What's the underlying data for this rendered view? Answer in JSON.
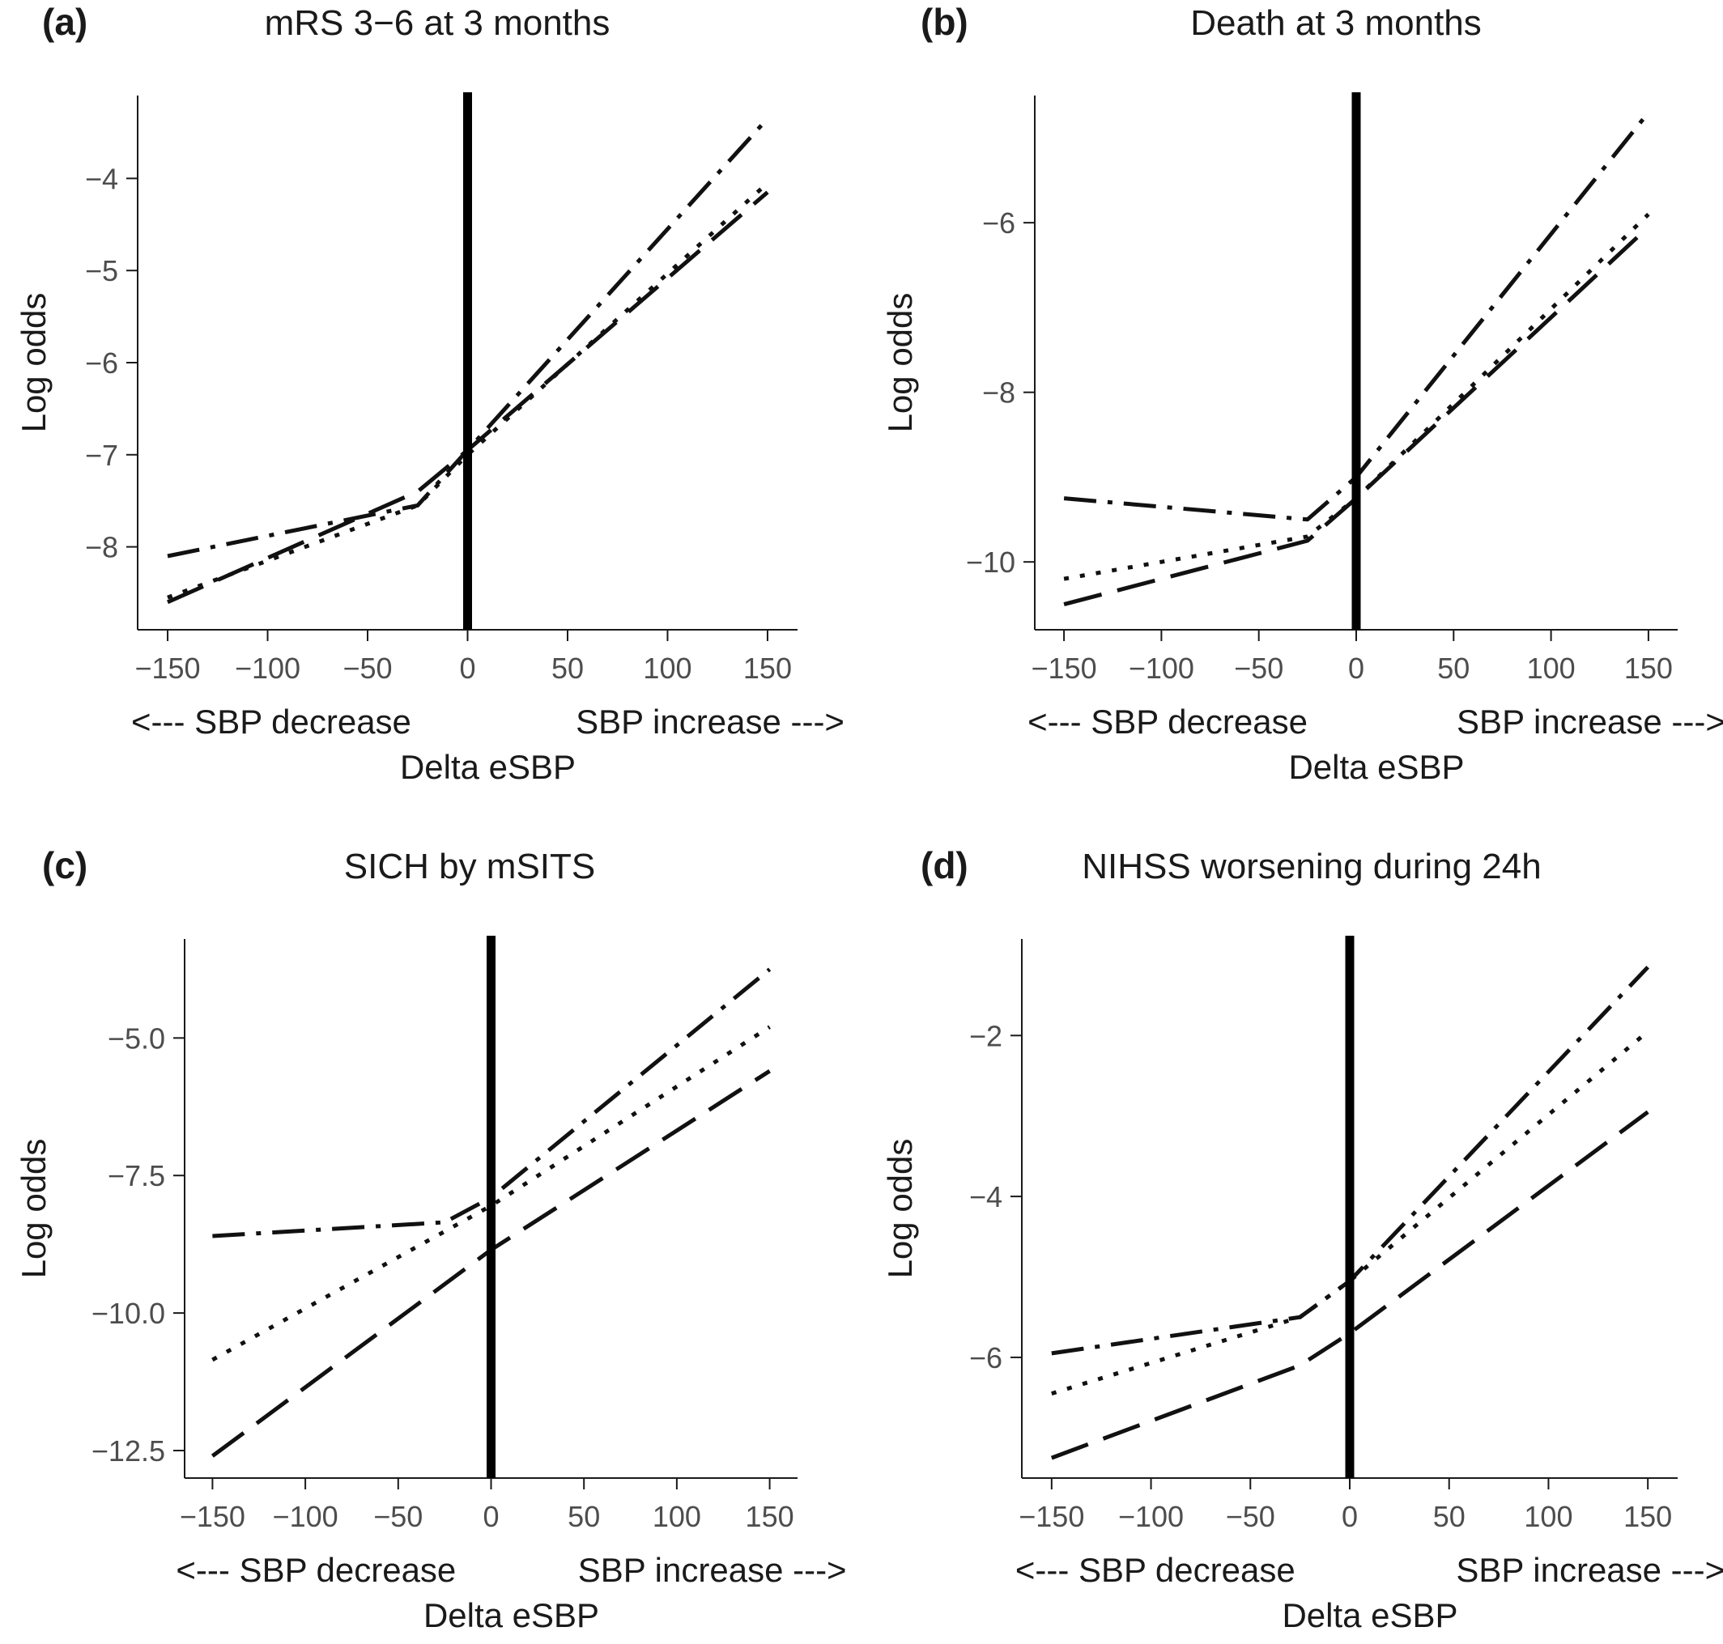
{
  "chart_data": [
    {
      "type": "line",
      "panel_letter": "(a)",
      "title": "mRS 3−6 at 3 months",
      "ylabel": "Log odds",
      "xlabel": "Delta eSBP",
      "direction_left": "<--- SBP decrease",
      "direction_right": "SBP increase --->",
      "xlim": [
        -165,
        165
      ],
      "ylim": [
        -8.9,
        -3.1
      ],
      "xticks": [
        -150,
        -100,
        -50,
        0,
        50,
        100,
        150
      ],
      "xtick_labels": [
        "−150",
        "−100",
        "−50",
        "0",
        "50",
        "100",
        "150"
      ],
      "yticks": [
        -8,
        -7,
        -6,
        -5,
        -4
      ],
      "ytick_labels": [
        "−8",
        "−7",
        "−6",
        "−5",
        "−4"
      ],
      "vline_x": 0,
      "series": [
        {
          "style": "dashed",
          "x": [
            -150,
            -25,
            0,
            150
          ],
          "y": [
            -8.6,
            -7.4,
            -6.95,
            -4.15
          ]
        },
        {
          "style": "dotted",
          "x": [
            -150,
            -25,
            0,
            150
          ],
          "y": [
            -8.55,
            -7.55,
            -7.0,
            -4.05
          ]
        },
        {
          "style": "dashdot",
          "x": [
            -150,
            -25,
            0,
            150
          ],
          "y": [
            -8.1,
            -7.55,
            -6.95,
            -3.35
          ]
        }
      ]
    },
    {
      "type": "line",
      "panel_letter": "(b)",
      "title": "Death at 3 months",
      "ylabel": "Log odds",
      "xlabel": "Delta eSBP",
      "direction_left": "<--- SBP decrease",
      "direction_right": "SBP increase --->",
      "xlim": [
        -165,
        165
      ],
      "ylim": [
        -10.8,
        -4.5
      ],
      "xticks": [
        -150,
        -100,
        -50,
        0,
        50,
        100,
        150
      ],
      "xtick_labels": [
        "−150",
        "−100",
        "−50",
        "0",
        "50",
        "100",
        "150"
      ],
      "yticks": [
        -10,
        -8,
        -6
      ],
      "ytick_labels": [
        "−10",
        "−8",
        "−6"
      ],
      "vline_x": 0,
      "series": [
        {
          "style": "dashed",
          "x": [
            -150,
            -25,
            0,
            150
          ],
          "y": [
            -10.5,
            -9.75,
            -9.25,
            -6.05
          ]
        },
        {
          "style": "dotted",
          "x": [
            -150,
            -25,
            0,
            150
          ],
          "y": [
            -10.2,
            -9.7,
            -9.25,
            -5.9
          ]
        },
        {
          "style": "dashdot",
          "x": [
            -150,
            -25,
            0,
            150
          ],
          "y": [
            -9.25,
            -9.5,
            -9.0,
            -4.7
          ]
        }
      ]
    },
    {
      "type": "line",
      "panel_letter": "(c)",
      "title": "SICH by mSITS",
      "ylabel": "Log odds",
      "xlabel": "Delta eSBP",
      "direction_left": "<--- SBP decrease",
      "direction_right": "SBP increase --->",
      "xlim": [
        -165,
        165
      ],
      "ylim": [
        -13.0,
        -3.2
      ],
      "xticks": [
        -150,
        -100,
        -50,
        0,
        50,
        100,
        150
      ],
      "xtick_labels": [
        "−150",
        "−100",
        "−50",
        "0",
        "50",
        "100",
        "150"
      ],
      "yticks": [
        -12.5,
        -10.0,
        -7.5,
        -5.0
      ],
      "ytick_labels": [
        "−12.5",
        "−10.0",
        "−7.5",
        "−5.0"
      ],
      "vline_x": 0,
      "series": [
        {
          "style": "dashed",
          "x": [
            -150,
            0,
            150
          ],
          "y": [
            -12.6,
            -8.85,
            -5.6
          ]
        },
        {
          "style": "dotted",
          "x": [
            -150,
            0,
            150
          ],
          "y": [
            -10.85,
            -8.05,
            -4.8
          ]
        },
        {
          "style": "dashdot",
          "x": [
            -150,
            -25,
            0,
            150
          ],
          "y": [
            -8.6,
            -8.35,
            -7.9,
            -3.75
          ]
        }
      ]
    },
    {
      "type": "line",
      "panel_letter": "(d)",
      "title": "NIHSS worsening during 24h",
      "ylabel": "Log odds",
      "xlabel": "Delta eSBP",
      "direction_left": "<--- SBP decrease",
      "direction_right": "SBP increase --->",
      "xlim": [
        -165,
        165
      ],
      "ylim": [
        -7.5,
        -0.8
      ],
      "xticks": [
        -150,
        -100,
        -50,
        0,
        50,
        100,
        150
      ],
      "xtick_labels": [
        "−150",
        "−100",
        "−50",
        "0",
        "50",
        "100",
        "150"
      ],
      "yticks": [
        -6,
        -4,
        -2
      ],
      "ytick_labels": [
        "−6",
        "−4",
        "−2"
      ],
      "vline_x": 0,
      "series": [
        {
          "style": "dashed",
          "x": [
            -150,
            -25,
            0,
            150
          ],
          "y": [
            -7.25,
            -6.1,
            -5.7,
            -2.95
          ]
        },
        {
          "style": "dotted",
          "x": [
            -150,
            -25,
            0,
            150
          ],
          "y": [
            -6.45,
            -5.5,
            -5.05,
            -1.95
          ]
        },
        {
          "style": "dashdot",
          "x": [
            -150,
            -25,
            0,
            150
          ],
          "y": [
            -5.95,
            -5.5,
            -5.05,
            -1.15
          ]
        }
      ]
    }
  ]
}
